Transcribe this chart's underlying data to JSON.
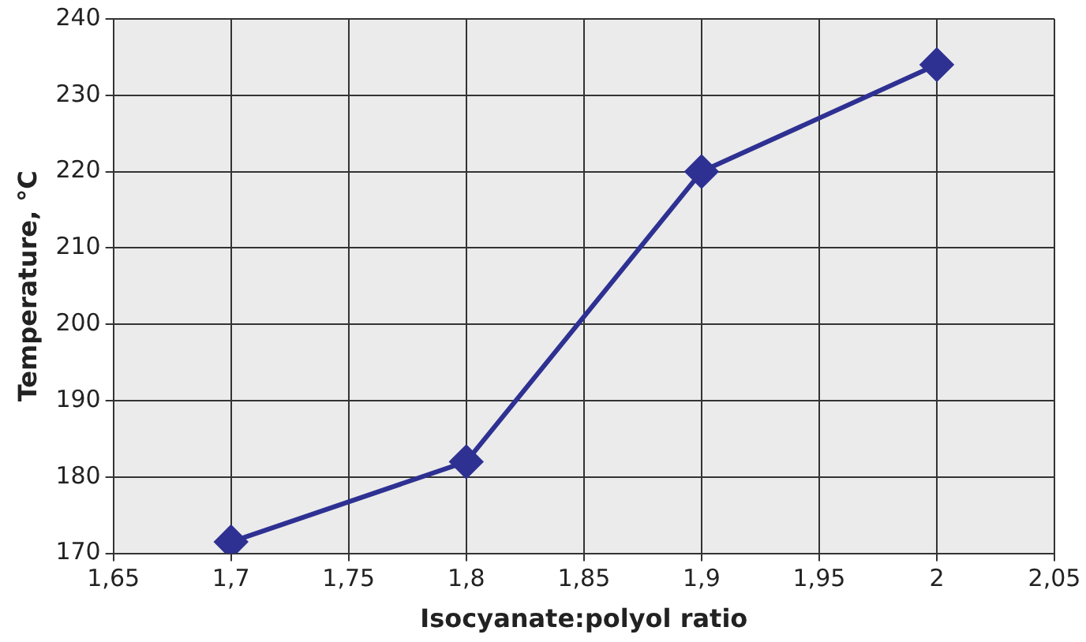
{
  "chart_data": {
    "type": "line",
    "xlabel": "Isocyanate:polyol ratio",
    "ylabel": "Temperature, °C",
    "x": [
      1.7,
      1.8,
      1.9,
      2.0
    ],
    "series": [
      {
        "color": "#2e3192",
        "values": [
          171.5,
          182,
          220,
          234
        ]
      }
    ],
    "xlim": [
      1.65,
      2.05
    ],
    "xticks": [
      {
        "value": 1.65,
        "label": "1,65"
      },
      {
        "value": 1.7,
        "label": "1,7"
      },
      {
        "value": 1.75,
        "label": "1,75"
      },
      {
        "value": 1.8,
        "label": "1,8"
      },
      {
        "value": 1.85,
        "label": "1,85"
      },
      {
        "value": 1.9,
        "label": "1,9"
      },
      {
        "value": 1.95,
        "label": "1,95"
      },
      {
        "value": 2.0,
        "label": "2"
      },
      {
        "value": 2.05,
        "label": "2,05"
      }
    ],
    "ylim": [
      170,
      240
    ],
    "yticks": [
      170,
      180,
      190,
      200,
      210,
      220,
      230,
      240
    ],
    "grid": true,
    "legend": false,
    "marker": "diamond",
    "line_style": "solid"
  }
}
